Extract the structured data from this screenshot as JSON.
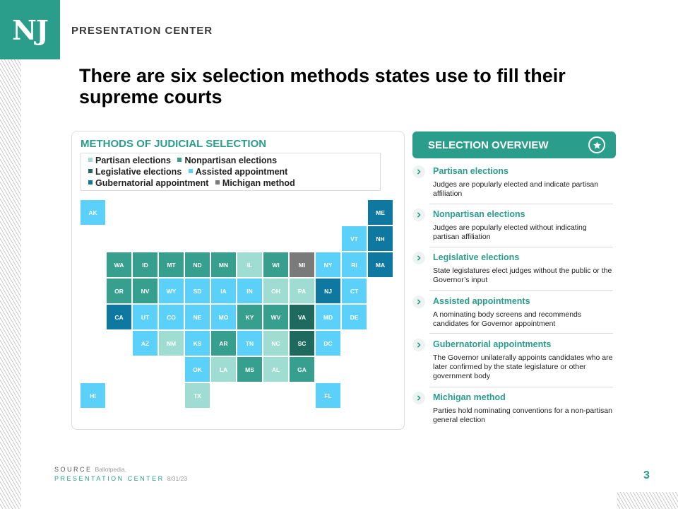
{
  "brand": {
    "logo": "NJ",
    "name": "PRESENTATION CENTER"
  },
  "title": "There are six selection methods states use to fill their supreme courts",
  "map": {
    "heading": "METHODS OF JUDICIAL SELECTION",
    "legend": [
      {
        "key": "partisan",
        "label": "Partisan elections",
        "color": "#9fddd2"
      },
      {
        "key": "nonpartisan",
        "label": "Nonpartisan elections",
        "color": "#369f8d"
      },
      {
        "key": "legislative",
        "label": "Legislative elections",
        "color": "#1f6a5f"
      },
      {
        "key": "assisted",
        "label": "Assisted  appointment",
        "color": "#5bd0f8"
      },
      {
        "key": "gubernatorial",
        "label": "Gubernatorial appointment",
        "color": "#0e78a1"
      },
      {
        "key": "michigan",
        "label": "Michigan method",
        "color": "#7a7a7a"
      }
    ],
    "states": [
      {
        "abbr": "AK",
        "method": "assisted"
      },
      {
        "abbr": "ME",
        "method": "gubernatorial"
      },
      {
        "abbr": "VT",
        "method": "assisted"
      },
      {
        "abbr": "NH",
        "method": "gubernatorial"
      },
      {
        "abbr": "WA",
        "method": "nonpartisan"
      },
      {
        "abbr": "ID",
        "method": "nonpartisan"
      },
      {
        "abbr": "MT",
        "method": "nonpartisan"
      },
      {
        "abbr": "ND",
        "method": "nonpartisan"
      },
      {
        "abbr": "MN",
        "method": "nonpartisan"
      },
      {
        "abbr": "IL",
        "method": "partisan"
      },
      {
        "abbr": "WI",
        "method": "nonpartisan"
      },
      {
        "abbr": "MI",
        "method": "michigan"
      },
      {
        "abbr": "NY",
        "method": "assisted"
      },
      {
        "abbr": "RI",
        "method": "assisted"
      },
      {
        "abbr": "MA",
        "method": "gubernatorial"
      },
      {
        "abbr": "OR",
        "method": "nonpartisan"
      },
      {
        "abbr": "NV",
        "method": "nonpartisan"
      },
      {
        "abbr": "WY",
        "method": "assisted"
      },
      {
        "abbr": "SD",
        "method": "assisted"
      },
      {
        "abbr": "IA",
        "method": "assisted"
      },
      {
        "abbr": "IN",
        "method": "assisted"
      },
      {
        "abbr": "OH",
        "method": "partisan"
      },
      {
        "abbr": "PA",
        "method": "partisan"
      },
      {
        "abbr": "NJ",
        "method": "gubernatorial"
      },
      {
        "abbr": "CT",
        "method": "assisted"
      },
      {
        "abbr": "CA",
        "method": "gubernatorial"
      },
      {
        "abbr": "UT",
        "method": "assisted"
      },
      {
        "abbr": "CO",
        "method": "assisted"
      },
      {
        "abbr": "NE",
        "method": "assisted"
      },
      {
        "abbr": "MO",
        "method": "assisted"
      },
      {
        "abbr": "KY",
        "method": "nonpartisan"
      },
      {
        "abbr": "WV",
        "method": "nonpartisan"
      },
      {
        "abbr": "VA",
        "method": "legislative"
      },
      {
        "abbr": "MD",
        "method": "assisted"
      },
      {
        "abbr": "DE",
        "method": "assisted"
      },
      {
        "abbr": "AZ",
        "method": "assisted"
      },
      {
        "abbr": "NM",
        "method": "partisan"
      },
      {
        "abbr": "KS",
        "method": "assisted"
      },
      {
        "abbr": "AR",
        "method": "nonpartisan"
      },
      {
        "abbr": "TN",
        "method": "assisted"
      },
      {
        "abbr": "NC",
        "method": "partisan"
      },
      {
        "abbr": "SC",
        "method": "legislative"
      },
      {
        "abbr": "DC",
        "method": "assisted"
      },
      {
        "abbr": "OK",
        "method": "assisted"
      },
      {
        "abbr": "LA",
        "method": "partisan"
      },
      {
        "abbr": "MS",
        "method": "nonpartisan"
      },
      {
        "abbr": "AL",
        "method": "partisan"
      },
      {
        "abbr": "GA",
        "method": "nonpartisan"
      },
      {
        "abbr": "HI",
        "method": "assisted"
      },
      {
        "abbr": "TX",
        "method": "partisan"
      },
      {
        "abbr": "FL",
        "method": "assisted"
      }
    ]
  },
  "overview": {
    "title": "SELECTION OVERVIEW",
    "star_icon": "star-icon",
    "methods": [
      {
        "name": "Partisan elections",
        "desc": "Judges are popularly elected and indicate partisan affiliation"
      },
      {
        "name": "Nonpartisan  elections",
        "desc": "Judges are popularly elected without indicating partisan affiliation"
      },
      {
        "name": "Legislative elections",
        "desc": "State legislatures elect judges without the public or the Governor’s input"
      },
      {
        "name": "Assisted  appointments",
        "desc": "A nominating body screens and recommends candidates for Governor appointment"
      },
      {
        "name": "Gubernatorial appointments",
        "desc": "The Governor unilaterally appoints candidates who are later confirmed by the state legislature or other government body"
      },
      {
        "name": "Michigan method",
        "desc": "Parties hold nominating conventions for a non-partisan general election"
      }
    ]
  },
  "footer": {
    "source_label": "SOURCE",
    "source_text": "Ballotpedia.",
    "center_label": "PRESENTATION CENTER",
    "date": "8/31/23"
  },
  "page_number": "3"
}
